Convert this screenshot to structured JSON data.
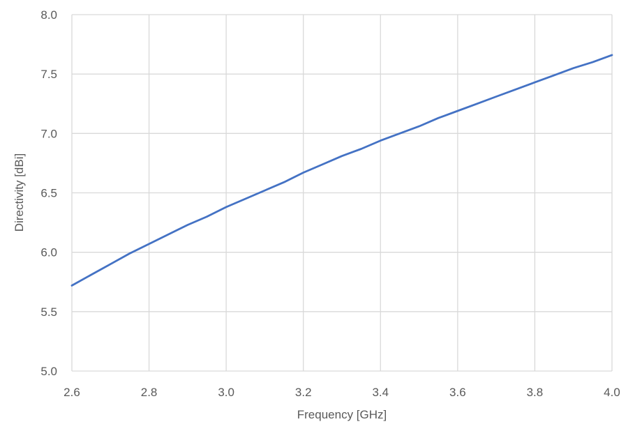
{
  "chart_data": {
    "type": "line",
    "title": "",
    "xlabel": "Frequency [GHz]",
    "ylabel": "Directivity [dBi]",
    "xlim": [
      2.6,
      4.0
    ],
    "ylim": [
      5.0,
      8.0
    ],
    "x_ticks": [
      "2.6",
      "2.8",
      "3.0",
      "3.2",
      "3.4",
      "3.6",
      "3.8",
      "4.0"
    ],
    "y_ticks": [
      "5.0",
      "5.5",
      "6.0",
      "6.5",
      "7.0",
      "7.5",
      "8.0"
    ],
    "grid": true,
    "legend": "none",
    "colors": {
      "line": "#4472C4",
      "grid": "#D9D9D9",
      "text": "#595959"
    },
    "series": [
      {
        "x": [
          2.6,
          2.65,
          2.7,
          2.75,
          2.8,
          2.85,
          2.9,
          2.95,
          3.0,
          3.05,
          3.1,
          3.15,
          3.2,
          3.25,
          3.3,
          3.35,
          3.4,
          3.45,
          3.5,
          3.55,
          3.6,
          3.65,
          3.7,
          3.75,
          3.8,
          3.85,
          3.9,
          3.95,
          4.0
        ],
        "values": [
          5.72,
          5.81,
          5.9,
          5.99,
          6.07,
          6.15,
          6.23,
          6.3,
          6.38,
          6.45,
          6.52,
          6.59,
          6.67,
          6.74,
          6.81,
          6.87,
          6.94,
          7.0,
          7.06,
          7.13,
          7.19,
          7.25,
          7.31,
          7.37,
          7.43,
          7.49,
          7.55,
          7.6,
          7.66
        ]
      }
    ]
  }
}
